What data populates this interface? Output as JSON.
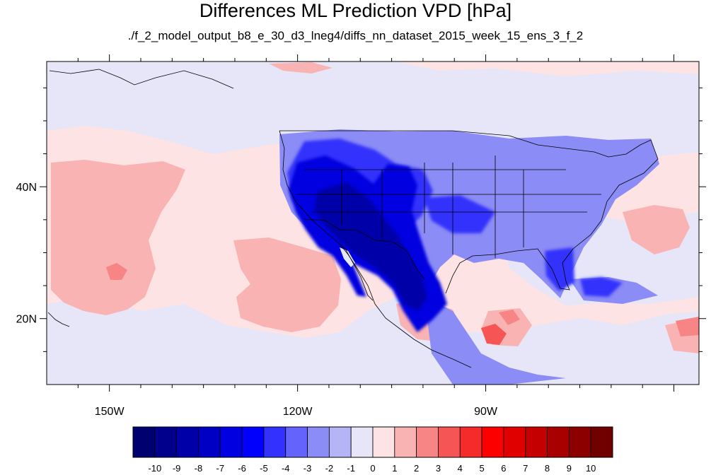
{
  "title": "Differences ML Prediction VPD [hPa]",
  "subtitle": "./f_2_model_output_b8_e_30_d3_lneg4/diffs_nn_dataset_2015_week_15_ens_3_f_2",
  "map": {
    "lon_range": [
      -160,
      -56
    ],
    "lat_range": [
      10,
      59
    ],
    "lon_ticks": [
      {
        "value": -150,
        "label": "150W"
      },
      {
        "value": -120,
        "label": "120W"
      },
      {
        "value": -90,
        "label": "90W"
      }
    ],
    "lat_ticks": [
      {
        "value": 40,
        "label": "40N"
      },
      {
        "value": 20,
        "label": "20N"
      }
    ],
    "background_color": "#fde3e3",
    "ocean_pink_color": "#f9b3b3",
    "light_blue_color": "#e6e6f8"
  },
  "colorbar": {
    "labels": [
      "-10",
      "-9",
      "-8",
      "-7",
      "-6",
      "-5",
      "-4",
      "-3",
      "-2",
      "-1",
      "0",
      "1",
      "2",
      "3",
      "4",
      "5",
      "6",
      "7",
      "8",
      "9",
      "10"
    ],
    "colors": [
      "#000070",
      "#00008c",
      "#0000a8",
      "#0000c4",
      "#0000e0",
      "#0000fc",
      "#3232fc",
      "#6464fc",
      "#8c8cf6",
      "#b4b4f6",
      "#e6e6f8",
      "#fde3e3",
      "#f9b3b3",
      "#f78585",
      "#f55555",
      "#f52a2a",
      "#fc0000",
      "#e00000",
      "#c40000",
      "#a80000",
      "#8c0000",
      "#700000"
    ]
  }
}
